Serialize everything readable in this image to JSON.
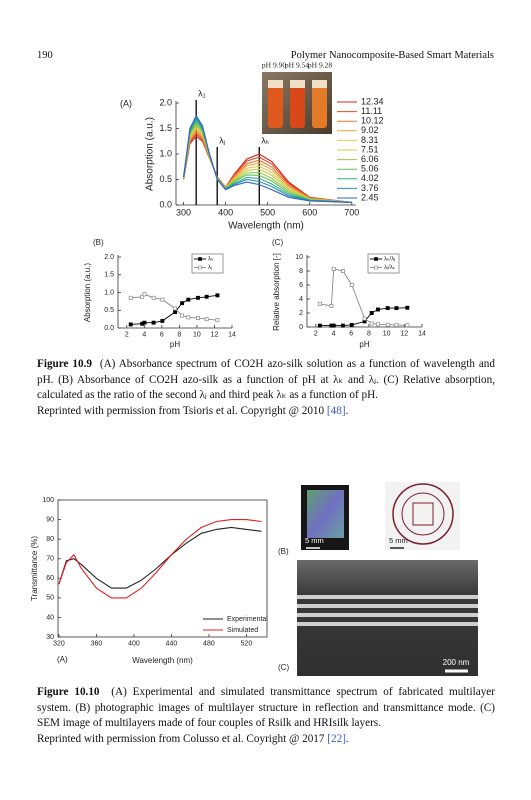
{
  "header": {
    "page_number": "190",
    "running_title": "Polymer Nanocomposite-Based Smart Materials"
  },
  "figure_10_9": {
    "panel_labels": [
      "(A)",
      "(B)",
      "(C)"
    ],
    "inset_labels": [
      "pH 9.90",
      "pH 9.54",
      "pH 9.28"
    ],
    "charts": [
      {
        "type": "line",
        "xlabel": "Wavelength (nm)",
        "ylabel": "Absorption (a.u.)",
        "x": [
          300,
          315,
          330,
          345,
          360,
          380,
          400,
          420,
          450,
          480,
          510,
          550,
          600,
          700
        ],
        "xlim": [
          282,
          710
        ],
        "ylim": [
          0,
          2.0
        ],
        "xticks": [
          300,
          400,
          500,
          600,
          700
        ],
        "yticks": [
          {
            "value": 0,
            "label": "0.0"
          },
          {
            "value": 0.5,
            "label": "0.5"
          },
          {
            "value": 1,
            "label": "1.0"
          },
          {
            "value": 1.5,
            "label": "1.5"
          },
          {
            "value": 2,
            "label": "2.0"
          }
        ],
        "markers": [
          {
            "label": "λ₁",
            "x": 330
          },
          {
            "label": "λⱼ",
            "x": 380
          },
          {
            "label": "λₖ",
            "x": 480
          }
        ],
        "series": [
          {
            "name": "12.34",
            "color": "#d62020",
            "values": [
              0.5,
              1.2,
              1.35,
              1.25,
              0.95,
              0.55,
              0.35,
              0.6,
              0.9,
              1.0,
              0.85,
              0.45,
              0.15,
              0.05
            ]
          },
          {
            "name": "11.11",
            "color": "#e04a20",
            "values": [
              0.5,
              1.23,
              1.39,
              1.28,
              0.96,
              0.55,
              0.35,
              0.58,
              0.86,
              0.94,
              0.8,
              0.42,
              0.14,
              0.05
            ]
          },
          {
            "name": "10.12",
            "color": "#e8782a",
            "values": [
              0.51,
              1.26,
              1.43,
              1.31,
              0.97,
              0.54,
              0.34,
              0.56,
              0.81,
              0.88,
              0.74,
              0.39,
              0.14,
              0.05
            ]
          },
          {
            "name": "9.02",
            "color": "#eaa03a",
            "values": [
              0.52,
              1.29,
              1.47,
              1.34,
              0.98,
              0.54,
              0.34,
              0.53,
              0.77,
              0.82,
              0.69,
              0.36,
              0.13,
              0.05
            ]
          },
          {
            "name": "8.31",
            "color": "#e0c84a",
            "values": [
              0.52,
              1.32,
              1.51,
              1.37,
              0.99,
              0.53,
              0.33,
              0.51,
              0.72,
              0.76,
              0.63,
              0.33,
              0.12,
              0.05
            ]
          },
          {
            "name": "7.51",
            "color": "#c0d04a",
            "values": [
              0.53,
              1.35,
              1.55,
              1.4,
              1.0,
              0.53,
              0.33,
              0.49,
              0.68,
              0.7,
              0.58,
              0.3,
              0.12,
              0.05
            ]
          },
          {
            "name": "6.06",
            "color": "#90c84a",
            "values": [
              0.53,
              1.38,
              1.59,
              1.43,
              1.01,
              0.52,
              0.32,
              0.47,
              0.63,
              0.64,
              0.52,
              0.27,
              0.11,
              0.05
            ]
          },
          {
            "name": "5.06",
            "color": "#5fbf5a",
            "values": [
              0.54,
              1.41,
              1.63,
              1.46,
              1.02,
              0.52,
              0.32,
              0.45,
              0.59,
              0.58,
              0.47,
              0.24,
              0.1,
              0.05
            ]
          },
          {
            "name": "4.02",
            "color": "#2fae8a",
            "values": [
              0.54,
              1.44,
              1.67,
              1.49,
              1.03,
              0.51,
              0.31,
              0.42,
              0.54,
              0.52,
              0.41,
              0.21,
              0.09,
              0.05
            ]
          },
          {
            "name": "3.76",
            "color": "#2a90b8",
            "values": [
              0.55,
              1.47,
              1.71,
              1.52,
              1.04,
              0.51,
              0.31,
              0.4,
              0.5,
              0.46,
              0.36,
              0.18,
              0.09,
              0.05
            ]
          },
          {
            "name": "2.45",
            "color": "#3060c8",
            "values": [
              0.55,
              1.5,
              1.75,
              1.55,
              1.05,
              0.5,
              0.3,
              0.38,
              0.45,
              0.4,
              0.3,
              0.15,
              0.08,
              0.05
            ]
          }
        ]
      },
      {
        "type": "line",
        "xlabel": "pH",
        "ylabel": "Absorption (a.u.)",
        "x": [
          2.45,
          3.76,
          4.02,
          5.06,
          6.06,
          7.51,
          8.31,
          9.02,
          10.12,
          11.11,
          12.34
        ],
        "xlim": [
          1,
          14
        ],
        "ylim": [
          0,
          2.0
        ],
        "xticks": [
          2,
          4,
          6,
          8,
          10,
          12,
          14
        ],
        "yticks": [
          {
            "value": 0,
            "label": "0.0"
          },
          {
            "value": 0.5,
            "label": "0.5"
          },
          {
            "value": 1,
            "label": "1.0"
          },
          {
            "value": 1.5,
            "label": "1.5"
          },
          {
            "value": 2,
            "label": "2.0"
          }
        ],
        "series": [
          {
            "name": "λₖ",
            "color": "#000000",
            "filled": true,
            "values": [
              0.1,
              0.12,
              0.15,
              0.15,
              0.2,
              0.45,
              0.7,
              0.8,
              0.85,
              0.88,
              0.92
            ]
          },
          {
            "name": "λⱼ",
            "color": "#888888",
            "filled": false,
            "values": [
              0.85,
              0.88,
              0.95,
              0.85,
              0.8,
              0.55,
              0.35,
              0.3,
              0.28,
              0.25,
              0.22
            ]
          }
        ]
      },
      {
        "type": "line",
        "xlabel": "pH",
        "ylabel": "Relative absorption [-]",
        "x": [
          2.45,
          3.76,
          4.02,
          5.06,
          6.06,
          7.51,
          8.31,
          9.02,
          10.12,
          11.11,
          12.34
        ],
        "xlim": [
          1,
          14
        ],
        "ylim": [
          0,
          10
        ],
        "xticks": [
          2,
          4,
          6,
          8,
          10,
          12,
          14
        ],
        "yticks": [
          0,
          2,
          4,
          6,
          8,
          10
        ],
        "series": [
          {
            "name": "λₖ/λⱼ",
            "color": "#000000",
            "filled": true,
            "values": [
              0.2,
              0.2,
              0.2,
              0.2,
              0.3,
              0.8,
              2.0,
              2.5,
              2.7,
              2.7,
              2.75
            ]
          },
          {
            "name": "λⱼ/λₖ",
            "color": "#888888",
            "filled": false,
            "values": [
              3.3,
              3.0,
              8.3,
              8.0,
              6.0,
              1.2,
              0.5,
              0.38,
              0.33,
              0.3,
              0.25
            ]
          }
        ]
      }
    ],
    "caption": {
      "label": "Figure 10.9",
      "text": "(A) Absorbance spectrum of CO2H azo-silk solution as a function of wavelength and pH. (B) Absorbance of CO2H azo-silk as a function of pH at λₖ and λⱼ. (C) Relative absorption, calculated as the ratio of the second λⱼ and third peak λₖ as a function of pH.",
      "credit": "Reprinted with permission from Tsioris et al. Copyright @ 2010",
      "ref": "[48]",
      "end": "."
    }
  },
  "figure_10_10": {
    "panel_labels": [
      "(A)",
      "(B)",
      "(C)"
    ],
    "scale_labels": [
      "5 mm",
      "5 mm",
      "200 nm"
    ],
    "charts": [
      {
        "type": "line",
        "xlabel": "Wavelength (nm)",
        "ylabel": "Transmittance (%)",
        "x": [
          320,
          328,
          336,
          344,
          360,
          376,
          392,
          408,
          424,
          440,
          456,
          472,
          488,
          504,
          520,
          536
        ],
        "xlim": [
          319,
          542
        ],
        "ylim": [
          30,
          100
        ],
        "xticks": [
          320,
          360,
          400,
          440,
          480,
          520
        ],
        "yticks": [
          30,
          40,
          50,
          60,
          70,
          80,
          90,
          100
        ],
        "series": [
          {
            "name": "Experimental",
            "color": "#222222",
            "values": [
              57,
              69,
              70,
              67,
              60,
              55,
              55,
              59,
              65,
              72,
              78,
              83,
              85,
              86,
              85,
              84
            ]
          },
          {
            "name": "Simulated",
            "color": "#e02020",
            "values": [
              57,
              68,
              72,
              65,
              55,
              50,
              50,
              55,
              63,
              72,
              80,
              86,
              89,
              90,
              90,
              89
            ]
          }
        ]
      }
    ],
    "caption": {
      "label": "Figure 10.10",
      "text": "(A) Experimental and simulated transmittance spectrum of fabricated multilayer system. (B) photographic images of multilayer structure in reflection and transmittance mode. (C) SEM image of multilayers made of four couples of Rsilk and HRIsilk layers.",
      "credit": "Reprinted with permission from Colusso et al. Coyright @ 2017",
      "ref": "[22]",
      "end": "."
    }
  }
}
